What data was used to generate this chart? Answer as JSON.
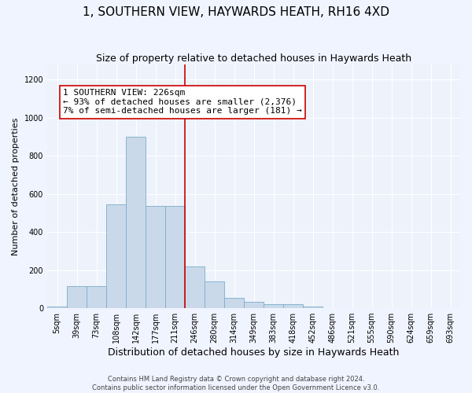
{
  "title": "1, SOUTHERN VIEW, HAYWARDS HEATH, RH16 4XD",
  "subtitle": "Size of property relative to detached houses in Haywards Heath",
  "xlabel": "Distribution of detached houses by size in Haywards Heath",
  "ylabel": "Number of detached properties",
  "categories": [
    "5sqm",
    "39sqm",
    "73sqm",
    "108sqm",
    "142sqm",
    "177sqm",
    "211sqm",
    "246sqm",
    "280sqm",
    "314sqm",
    "349sqm",
    "383sqm",
    "418sqm",
    "452sqm",
    "486sqm",
    "521sqm",
    "555sqm",
    "590sqm",
    "624sqm",
    "659sqm",
    "693sqm"
  ],
  "bar_values": [
    10,
    115,
    115,
    545,
    900,
    535,
    535,
    220,
    140,
    55,
    35,
    20,
    20,
    10,
    0,
    0,
    0,
    0,
    0,
    0,
    0
  ],
  "bar_color": "#c9d9ea",
  "bar_edge_color": "#7aaec8",
  "background_color": "#edf2fb",
  "grid_color": "#ffffff",
  "vline_color": "#cc0000",
  "annotation_text": "1 SOUTHERN VIEW: 226sqm\n← 93% of detached houses are smaller (2,376)\n7% of semi-detached houses are larger (181) →",
  "annotation_box_color": "#ffffff",
  "annotation_box_edge_color": "#cc0000",
  "ylim": [
    0,
    1280
  ],
  "yticks": [
    0,
    200,
    400,
    600,
    800,
    1000,
    1200
  ],
  "footer_text": "Contains HM Land Registry data © Crown copyright and database right 2024.\nContains public sector information licensed under the Open Government Licence v3.0.",
  "title_fontsize": 11,
  "subtitle_fontsize": 9,
  "xlabel_fontsize": 9,
  "ylabel_fontsize": 8,
  "tick_fontsize": 7,
  "annotation_fontsize": 8,
  "footer_fontsize": 6
}
